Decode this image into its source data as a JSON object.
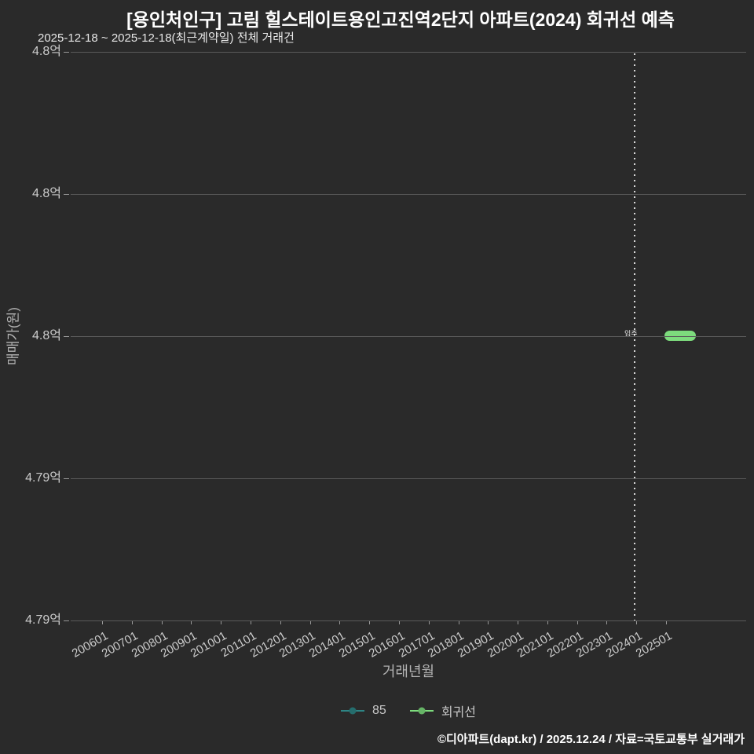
{
  "page": {
    "title": "[용인처인구] 고림 힐스테이트용인고진역2단지 아파트(2024) 회귀선 예측",
    "subtitle": "2025-12-18 ~ 2025-12-18(최근계약일) 전체 거래건",
    "footer": "©디아파트(dapt.kr) / 2025.12.24 / 자료=국토교통부 실거래가"
  },
  "chart_data": {
    "type": "line",
    "title": "[용인처인구] 고림 힐스테이트용인고진역2단지 아파트(2024) 회귀선 예측",
    "xlabel": "거래년월",
    "ylabel": "매매가(원)",
    "grid": true,
    "legend_position": "bottom-center",
    "background_color": "#2a2a2a",
    "grid_color": "#5a5a5a",
    "x_ticks": [
      "200601",
      "200701",
      "200801",
      "200901",
      "201001",
      "201101",
      "201201",
      "201301",
      "201401",
      "201501",
      "201601",
      "201701",
      "201801",
      "201901",
      "202001",
      "202101",
      "202201",
      "202301",
      "202401",
      "202501"
    ],
    "y_ticks": [
      "4.8억",
      "4.8억",
      "4.8억",
      "4.79억",
      "4.79억"
    ],
    "series": [
      {
        "name": "85",
        "color": "#2e8585",
        "marker": "line-dot",
        "points": [
          {
            "x": "202512",
            "y": "4.8억"
          }
        ]
      },
      {
        "name": "회귀선",
        "color": "#7ddc7d",
        "marker": "line-dot",
        "points": [
          {
            "x": "202502",
            "y": "4.8억"
          },
          {
            "x": "202512",
            "y": "4.8억"
          }
        ]
      }
    ],
    "annotation": {
      "label": "입주",
      "x": "202401",
      "style": "dotted-vertical-line",
      "line_color": "#d9d9d9"
    }
  }
}
